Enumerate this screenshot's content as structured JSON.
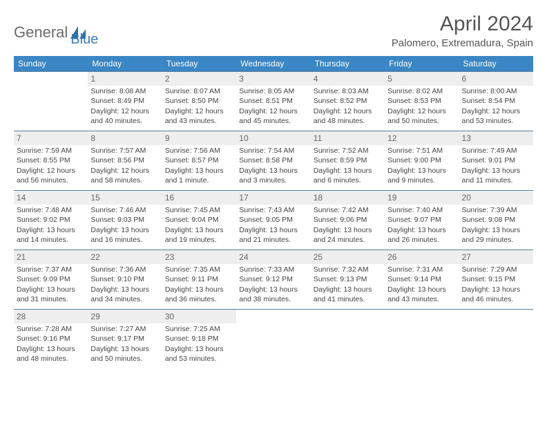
{
  "logo": {
    "text1": "General",
    "text2": "Blue"
  },
  "title": "April 2024",
  "location": "Palomero, Extremadura, Spain",
  "colors": {
    "header_bg": "#3b86c4",
    "header_fg": "#ffffff",
    "border": "#5a7a9a",
    "text": "#444444",
    "title": "#555555",
    "shade": "#eeeeee"
  },
  "weekdays": [
    "Sunday",
    "Monday",
    "Tuesday",
    "Wednesday",
    "Thursday",
    "Friday",
    "Saturday"
  ],
  "weeks": [
    [
      {
        "day": "",
        "sunrise": "",
        "sunset": "",
        "daylight": ""
      },
      {
        "day": "1",
        "sunrise": "Sunrise: 8:08 AM",
        "sunset": "Sunset: 8:49 PM",
        "daylight": "Daylight: 12 hours and 40 minutes."
      },
      {
        "day": "2",
        "sunrise": "Sunrise: 8:07 AM",
        "sunset": "Sunset: 8:50 PM",
        "daylight": "Daylight: 12 hours and 43 minutes."
      },
      {
        "day": "3",
        "sunrise": "Sunrise: 8:05 AM",
        "sunset": "Sunset: 8:51 PM",
        "daylight": "Daylight: 12 hours and 45 minutes."
      },
      {
        "day": "4",
        "sunrise": "Sunrise: 8:03 AM",
        "sunset": "Sunset: 8:52 PM",
        "daylight": "Daylight: 12 hours and 48 minutes."
      },
      {
        "day": "5",
        "sunrise": "Sunrise: 8:02 AM",
        "sunset": "Sunset: 8:53 PM",
        "daylight": "Daylight: 12 hours and 50 minutes."
      },
      {
        "day": "6",
        "sunrise": "Sunrise: 8:00 AM",
        "sunset": "Sunset: 8:54 PM",
        "daylight": "Daylight: 12 hours and 53 minutes."
      }
    ],
    [
      {
        "day": "7",
        "sunrise": "Sunrise: 7:59 AM",
        "sunset": "Sunset: 8:55 PM",
        "daylight": "Daylight: 12 hours and 56 minutes."
      },
      {
        "day": "8",
        "sunrise": "Sunrise: 7:57 AM",
        "sunset": "Sunset: 8:56 PM",
        "daylight": "Daylight: 12 hours and 58 minutes."
      },
      {
        "day": "9",
        "sunrise": "Sunrise: 7:56 AM",
        "sunset": "Sunset: 8:57 PM",
        "daylight": "Daylight: 13 hours and 1 minute."
      },
      {
        "day": "10",
        "sunrise": "Sunrise: 7:54 AM",
        "sunset": "Sunset: 8:58 PM",
        "daylight": "Daylight: 13 hours and 3 minutes."
      },
      {
        "day": "11",
        "sunrise": "Sunrise: 7:52 AM",
        "sunset": "Sunset: 8:59 PM",
        "daylight": "Daylight: 13 hours and 6 minutes."
      },
      {
        "day": "12",
        "sunrise": "Sunrise: 7:51 AM",
        "sunset": "Sunset: 9:00 PM",
        "daylight": "Daylight: 13 hours and 9 minutes."
      },
      {
        "day": "13",
        "sunrise": "Sunrise: 7:49 AM",
        "sunset": "Sunset: 9:01 PM",
        "daylight": "Daylight: 13 hours and 11 minutes."
      }
    ],
    [
      {
        "day": "14",
        "sunrise": "Sunrise: 7:48 AM",
        "sunset": "Sunset: 9:02 PM",
        "daylight": "Daylight: 13 hours and 14 minutes."
      },
      {
        "day": "15",
        "sunrise": "Sunrise: 7:46 AM",
        "sunset": "Sunset: 9:03 PM",
        "daylight": "Daylight: 13 hours and 16 minutes."
      },
      {
        "day": "16",
        "sunrise": "Sunrise: 7:45 AM",
        "sunset": "Sunset: 9:04 PM",
        "daylight": "Daylight: 13 hours and 19 minutes."
      },
      {
        "day": "17",
        "sunrise": "Sunrise: 7:43 AM",
        "sunset": "Sunset: 9:05 PM",
        "daylight": "Daylight: 13 hours and 21 minutes."
      },
      {
        "day": "18",
        "sunrise": "Sunrise: 7:42 AM",
        "sunset": "Sunset: 9:06 PM",
        "daylight": "Daylight: 13 hours and 24 minutes."
      },
      {
        "day": "19",
        "sunrise": "Sunrise: 7:40 AM",
        "sunset": "Sunset: 9:07 PM",
        "daylight": "Daylight: 13 hours and 26 minutes."
      },
      {
        "day": "20",
        "sunrise": "Sunrise: 7:39 AM",
        "sunset": "Sunset: 9:08 PM",
        "daylight": "Daylight: 13 hours and 29 minutes."
      }
    ],
    [
      {
        "day": "21",
        "sunrise": "Sunrise: 7:37 AM",
        "sunset": "Sunset: 9:09 PM",
        "daylight": "Daylight: 13 hours and 31 minutes."
      },
      {
        "day": "22",
        "sunrise": "Sunrise: 7:36 AM",
        "sunset": "Sunset: 9:10 PM",
        "daylight": "Daylight: 13 hours and 34 minutes."
      },
      {
        "day": "23",
        "sunrise": "Sunrise: 7:35 AM",
        "sunset": "Sunset: 9:11 PM",
        "daylight": "Daylight: 13 hours and 36 minutes."
      },
      {
        "day": "24",
        "sunrise": "Sunrise: 7:33 AM",
        "sunset": "Sunset: 9:12 PM",
        "daylight": "Daylight: 13 hours and 38 minutes."
      },
      {
        "day": "25",
        "sunrise": "Sunrise: 7:32 AM",
        "sunset": "Sunset: 9:13 PM",
        "daylight": "Daylight: 13 hours and 41 minutes."
      },
      {
        "day": "26",
        "sunrise": "Sunrise: 7:31 AM",
        "sunset": "Sunset: 9:14 PM",
        "daylight": "Daylight: 13 hours and 43 minutes."
      },
      {
        "day": "27",
        "sunrise": "Sunrise: 7:29 AM",
        "sunset": "Sunset: 9:15 PM",
        "daylight": "Daylight: 13 hours and 46 minutes."
      }
    ],
    [
      {
        "day": "28",
        "sunrise": "Sunrise: 7:28 AM",
        "sunset": "Sunset: 9:16 PM",
        "daylight": "Daylight: 13 hours and 48 minutes."
      },
      {
        "day": "29",
        "sunrise": "Sunrise: 7:27 AM",
        "sunset": "Sunset: 9:17 PM",
        "daylight": "Daylight: 13 hours and 50 minutes."
      },
      {
        "day": "30",
        "sunrise": "Sunrise: 7:25 AM",
        "sunset": "Sunset: 9:18 PM",
        "daylight": "Daylight: 13 hours and 53 minutes."
      },
      {
        "day": "",
        "sunrise": "",
        "sunset": "",
        "daylight": ""
      },
      {
        "day": "",
        "sunrise": "",
        "sunset": "",
        "daylight": ""
      },
      {
        "day": "",
        "sunrise": "",
        "sunset": "",
        "daylight": ""
      },
      {
        "day": "",
        "sunrise": "",
        "sunset": "",
        "daylight": ""
      }
    ]
  ]
}
